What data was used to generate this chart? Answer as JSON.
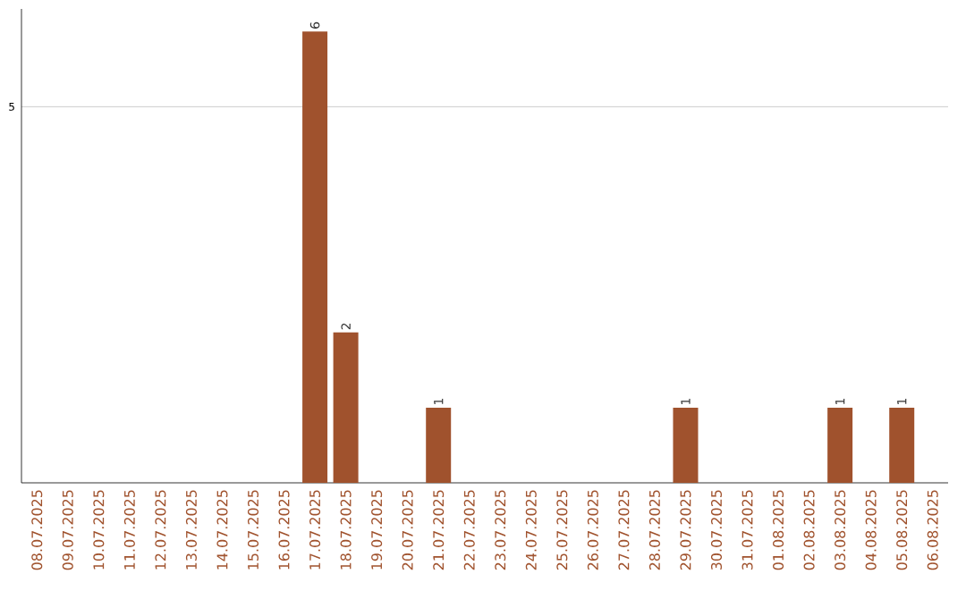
{
  "chart_data": {
    "type": "bar",
    "categories": [
      "08.07.2025",
      "09.07.2025",
      "10.07.2025",
      "11.07.2025",
      "12.07.2025",
      "13.07.2025",
      "14.07.2025",
      "15.07.2025",
      "16.07.2025",
      "17.07.2025",
      "18.07.2025",
      "19.07.2025",
      "20.07.2025",
      "21.07.2025",
      "22.07.2025",
      "23.07.2025",
      "24.07.2025",
      "25.07.2025",
      "26.07.2025",
      "27.07.2025",
      "28.07.2025",
      "29.07.2025",
      "30.07.2025",
      "31.07.2025",
      "01.08.2025",
      "02.08.2025",
      "03.08.2025",
      "04.08.2025",
      "05.08.2025",
      "06.08.2025"
    ],
    "values": [
      0,
      0,
      0,
      0,
      0,
      0,
      0,
      0,
      0,
      6,
      2,
      0,
      0,
      1,
      0,
      0,
      0,
      0,
      0,
      0,
      0,
      1,
      0,
      0,
      0,
      0,
      1,
      0,
      1,
      0
    ],
    "color": "#a0522d",
    "ylim": [
      0,
      6.3
    ],
    "yticks": [
      5
    ],
    "grid": "y",
    "value_labels": [
      null,
      null,
      null,
      null,
      null,
      null,
      null,
      null,
      null,
      "6",
      "2",
      null,
      null,
      "1",
      null,
      null,
      null,
      null,
      null,
      null,
      null,
      "1",
      null,
      null,
      null,
      null,
      "1",
      null,
      "1",
      null
    ]
  }
}
